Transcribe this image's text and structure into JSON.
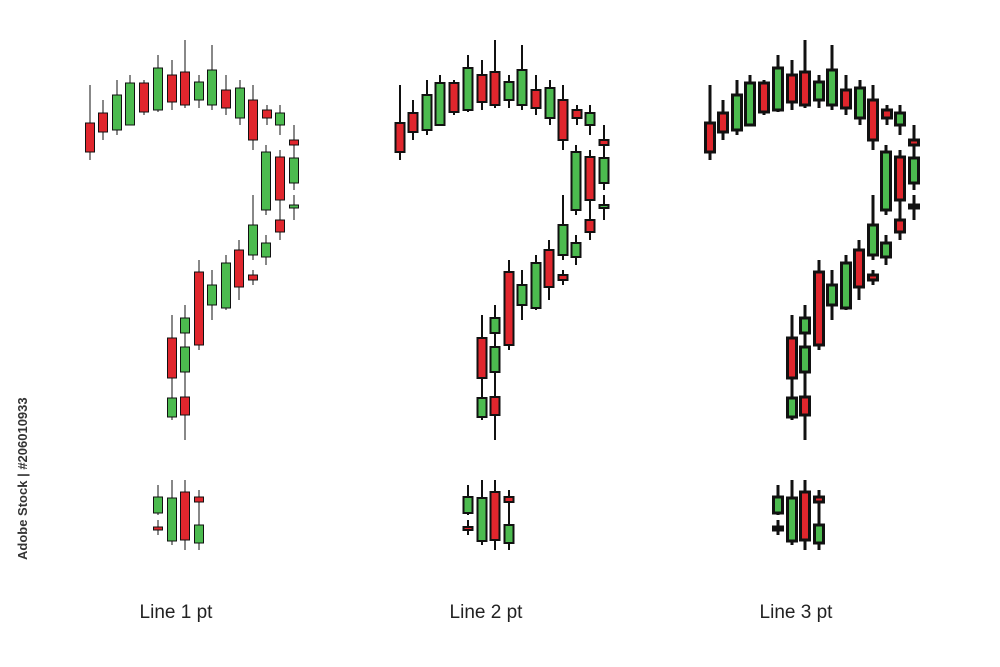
{
  "captions": [
    "Line 1 pt",
    "Line 2 pt",
    "Line 3 pt"
  ],
  "stock_id": "Adobe Stock | #206010933"
}
